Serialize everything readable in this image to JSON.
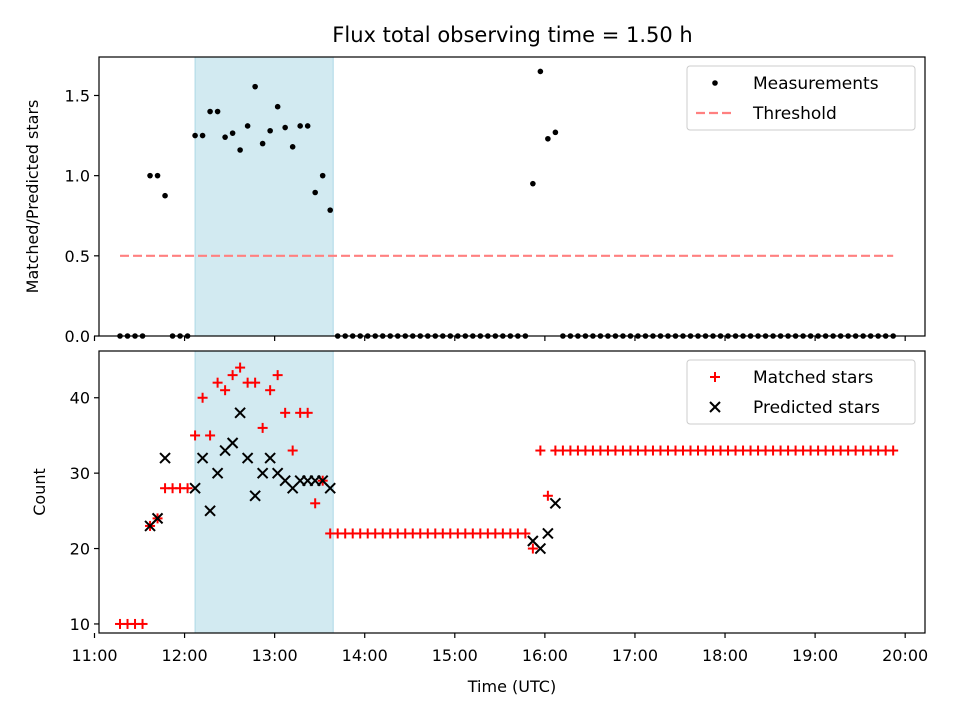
{
  "title": "Flux total observing time = 1.50 h",
  "colors": {
    "measurement": "#000000",
    "threshold": "#ff8080",
    "matched": "#ff0000",
    "predicted": "#000000",
    "highlight": "#add8e6"
  },
  "chart_data": [
    {
      "type": "scatter",
      "ylabel": "Matched/Predicted stars",
      "xlabel": "",
      "xlim": [
        11.05,
        20.22
      ],
      "ylim": [
        0,
        1.74
      ],
      "yticks": [
        0.0,
        0.5,
        1.0,
        1.5
      ],
      "ytick_labels": [
        "0.0",
        "0.5",
        "1.0",
        "1.5"
      ],
      "grid": false,
      "legend_position": "top-right",
      "highlight_span": [
        "12:07",
        "13:39"
      ],
      "series": [
        {
          "name": "Measurements",
          "kind": "scatter",
          "marker": "dot",
          "x": [
            "11:17",
            "11:22",
            "11:27",
            "11:32",
            "11:37",
            "11:42",
            "11:47",
            "11:52",
            "11:57",
            "12:02",
            "12:07",
            "12:12",
            "12:17",
            "12:22",
            "12:27",
            "12:32",
            "12:37",
            "12:42",
            "12:47",
            "12:52",
            "12:57",
            "13:02",
            "13:07",
            "13:12",
            "13:17",
            "13:22",
            "13:27",
            "13:32",
            "13:37",
            "13:42",
            "13:47",
            "13:52",
            "13:57",
            "14:02",
            "14:07",
            "14:12",
            "14:17",
            "14:22",
            "14:27",
            "14:32",
            "14:37",
            "14:42",
            "14:47",
            "14:52",
            "14:57",
            "15:02",
            "15:07",
            "15:12",
            "15:17",
            "15:22",
            "15:27",
            "15:32",
            "15:37",
            "15:42",
            "15:47",
            "15:52",
            "15:57",
            "16:02",
            "16:07",
            "16:12",
            "16:17",
            "16:22",
            "16:27",
            "16:32",
            "16:37",
            "16:42",
            "16:47",
            "16:52",
            "16:57",
            "17:02",
            "17:07",
            "17:12",
            "17:17",
            "17:22",
            "17:27",
            "17:32",
            "17:37",
            "17:42",
            "17:47",
            "17:52",
            "17:57",
            "18:02",
            "18:07",
            "18:12",
            "18:17",
            "18:22",
            "18:27",
            "18:32",
            "18:37",
            "18:42",
            "18:47",
            "18:52",
            "18:57",
            "19:02",
            "19:07",
            "19:12",
            "19:17",
            "19:22",
            "19:27",
            "19:32",
            "19:37",
            "19:42",
            "19:47",
            "19:52"
          ],
          "y": [
            0,
            0,
            0,
            0,
            1.0,
            1.0,
            0.875,
            0,
            0,
            0,
            1.25,
            1.25,
            1.4,
            1.4,
            1.24,
            1.265,
            1.16,
            1.31,
            1.555,
            1.2,
            1.28,
            1.43,
            1.3,
            1.18,
            1.31,
            1.31,
            0.895,
            1.0,
            0.785,
            0,
            0,
            0,
            0,
            0,
            0,
            0,
            0,
            0,
            0,
            0,
            0,
            0,
            0,
            0,
            0,
            0,
            0,
            0,
            0,
            0,
            0,
            0,
            0,
            0,
            0,
            0.95,
            1.65,
            1.23,
            1.27,
            0,
            0,
            0,
            0,
            0,
            0,
            0,
            0,
            0,
            0,
            0,
            0,
            0,
            0,
            0,
            0,
            0,
            0,
            0,
            0,
            0,
            0,
            0,
            0,
            0,
            0,
            0,
            0,
            0,
            0,
            0,
            0,
            0,
            0,
            0,
            0,
            0,
            0,
            0,
            0,
            0,
            0,
            0,
            0,
            0
          ]
        },
        {
          "name": "Threshold",
          "kind": "line",
          "style": "dashed",
          "x": [
            "11:17",
            "19:52"
          ],
          "y": [
            0.5,
            0.5
          ]
        }
      ]
    },
    {
      "type": "scatter",
      "ylabel": "Count",
      "xlabel": "Time (UTC)",
      "xlim": [
        11.05,
        20.22
      ],
      "ylim": [
        8.8,
        46.2
      ],
      "yticks": [
        10,
        20,
        30,
        40
      ],
      "ytick_labels": [
        "10",
        "20",
        "30",
        "40"
      ],
      "xticks": [
        "11:00",
        "12:00",
        "13:00",
        "14:00",
        "15:00",
        "16:00",
        "17:00",
        "18:00",
        "19:00",
        "20:00"
      ],
      "grid": false,
      "legend_position": "top-right",
      "highlight_span": [
        "12:07",
        "13:39"
      ],
      "series": [
        {
          "name": "Matched stars",
          "kind": "scatter",
          "marker": "plus",
          "x": [
            "11:17",
            "11:22",
            "11:27",
            "11:32",
            "11:37",
            "11:42",
            "11:47",
            "11:52",
            "11:57",
            "12:02",
            "12:07",
            "12:12",
            "12:17",
            "12:22",
            "12:27",
            "12:32",
            "12:37",
            "12:42",
            "12:47",
            "12:52",
            "12:57",
            "13:02",
            "13:07",
            "13:12",
            "13:17",
            "13:22",
            "13:27",
            "13:32",
            "13:37",
            "13:42",
            "13:47",
            "13:52",
            "13:57",
            "14:02",
            "14:07",
            "14:12",
            "14:17",
            "14:22",
            "14:27",
            "14:32",
            "14:37",
            "14:42",
            "14:47",
            "14:52",
            "14:57",
            "15:02",
            "15:07",
            "15:12",
            "15:17",
            "15:22",
            "15:27",
            "15:32",
            "15:37",
            "15:42",
            "15:47",
            "15:52",
            "15:57",
            "16:02",
            "16:07",
            "16:12",
            "16:17",
            "16:22",
            "16:27",
            "16:32",
            "16:37",
            "16:42",
            "16:47",
            "16:52",
            "16:57",
            "17:02",
            "17:07",
            "17:12",
            "17:17",
            "17:22",
            "17:27",
            "17:32",
            "17:37",
            "17:42",
            "17:47",
            "17:52",
            "17:57",
            "18:02",
            "18:07",
            "18:12",
            "18:17",
            "18:22",
            "18:27",
            "18:32",
            "18:37",
            "18:42",
            "18:47",
            "18:52",
            "18:57",
            "19:02",
            "19:07",
            "19:12",
            "19:17",
            "19:22",
            "19:27",
            "19:32",
            "19:37",
            "19:42",
            "19:47",
            "19:52"
          ],
          "y": [
            10,
            10,
            10,
            10,
            23,
            24,
            28,
            28,
            28,
            28,
            35,
            40,
            35,
            42,
            41,
            43,
            44,
            42,
            42,
            36,
            41,
            43,
            38,
            33,
            38,
            38,
            26,
            29,
            22,
            22,
            22,
            22,
            22,
            22,
            22,
            22,
            22,
            22,
            22,
            22,
            22,
            22,
            22,
            22,
            22,
            22,
            22,
            22,
            22,
            22,
            22,
            22,
            22,
            22,
            22,
            20,
            33,
            27,
            33,
            33,
            33,
            33,
            33,
            33,
            33,
            33,
            33,
            33,
            33,
            33,
            33,
            33,
            33,
            33,
            33,
            33,
            33,
            33,
            33,
            33,
            33,
            33,
            33,
            33,
            33,
            33,
            33,
            33,
            33,
            33,
            33,
            33,
            33,
            33,
            33,
            33,
            33,
            33,
            33,
            33,
            33,
            33,
            33,
            33
          ]
        },
        {
          "name": "Predicted stars",
          "kind": "scatter",
          "marker": "x",
          "x": [
            "11:37",
            "11:42",
            "11:47",
            "12:07",
            "12:12",
            "12:17",
            "12:22",
            "12:27",
            "12:32",
            "12:37",
            "12:42",
            "12:47",
            "12:52",
            "12:57",
            "13:02",
            "13:07",
            "13:12",
            "13:17",
            "13:22",
            "13:27",
            "13:32",
            "13:37",
            "15:52",
            "15:57",
            "16:02",
            "16:07"
          ],
          "y": [
            23,
            24,
            32,
            28,
            32,
            25,
            30,
            33,
            34,
            38,
            32,
            27,
            30,
            32,
            30,
            29,
            28,
            29,
            29,
            29,
            29,
            28,
            21,
            20,
            22,
            26
          ]
        }
      ]
    }
  ]
}
